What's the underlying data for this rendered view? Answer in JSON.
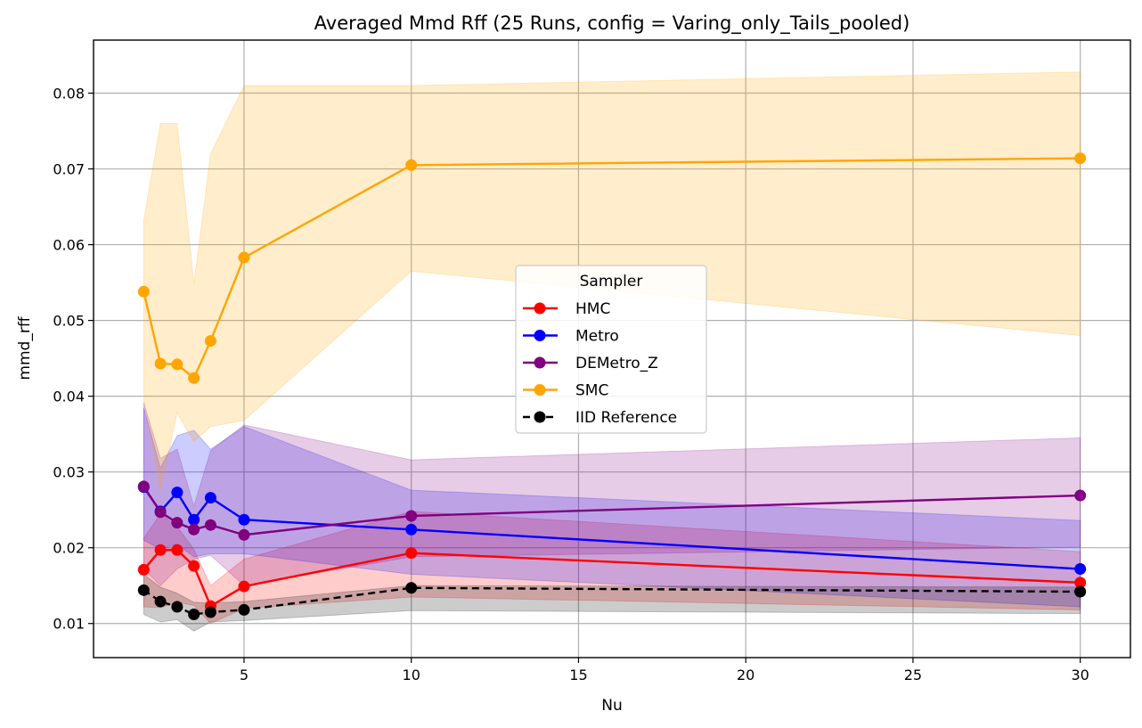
{
  "chart_data": {
    "type": "line",
    "title": "Averaged Mmd Rff (25 Runs, config = Varing_only_Tails_pooled)",
    "xlabel": "Nu",
    "ylabel": "mmd_rff",
    "xlim": [
      0.5,
      31.5
    ],
    "ylim": [
      0.0055,
      0.087
    ],
    "xticks": [
      5,
      10,
      15,
      20,
      25,
      30
    ],
    "yticks": [
      0.01,
      0.02,
      0.03,
      0.04,
      0.05,
      0.06,
      0.07,
      0.08
    ],
    "xtick_labels": [
      "5",
      "10",
      "15",
      "20",
      "25",
      "30"
    ],
    "ytick_labels": [
      "0.01",
      "0.02",
      "0.03",
      "0.04",
      "0.05",
      "0.06",
      "0.07",
      "0.08"
    ],
    "grid": true,
    "legend": {
      "title": "Sampler",
      "placement": "center"
    },
    "x": [
      2,
      2.5,
      3,
      3.5,
      4,
      5,
      10,
      30
    ],
    "series": [
      {
        "name": "HMC",
        "color": "#ff0000",
        "linestyle": "solid",
        "values": [
          0.0171,
          0.0197,
          0.0197,
          0.0176,
          0.0123,
          0.0149,
          0.0193,
          0.0154
        ],
        "lower": [
          0.0122,
          0.0121,
          0.0128,
          0.0124,
          0.01,
          0.012,
          0.0135,
          0.0118
        ],
        "upper": [
          0.0212,
          0.0245,
          0.0228,
          0.0198,
          0.015,
          0.0185,
          0.0248,
          0.0195
        ]
      },
      {
        "name": "Metro",
        "color": "#0000ff",
        "linestyle": "solid",
        "values": [
          0.028,
          0.0248,
          0.0273,
          0.0237,
          0.0266,
          0.0237,
          0.0224,
          0.0172
        ],
        "lower": [
          0.021,
          0.0198,
          0.0205,
          0.0188,
          0.0192,
          0.0192,
          0.0165,
          0.0122
        ],
        "upper": [
          0.0385,
          0.0305,
          0.0348,
          0.0355,
          0.033,
          0.036,
          0.0276,
          0.0236
        ]
      },
      {
        "name": "DEMetro_Z",
        "color": "#800080",
        "linestyle": "solid",
        "values": [
          0.0281,
          0.0247,
          0.0233,
          0.0224,
          0.023,
          0.0217,
          0.0242,
          0.0269
        ],
        "lower": [
          0.0172,
          0.015,
          0.0172,
          0.0185,
          0.019,
          0.015,
          0.0188,
          0.0201
        ],
        "upper": [
          0.0392,
          0.0318,
          0.033,
          0.0255,
          0.0328,
          0.0362,
          0.0316,
          0.0345
        ]
      },
      {
        "name": "SMC",
        "color": "#ffa500",
        "linestyle": "solid",
        "values": [
          0.0538,
          0.0443,
          0.0442,
          0.0424,
          0.0473,
          0.0583,
          0.0705,
          0.0714
        ],
        "lower": [
          0.0397,
          0.0275,
          0.0378,
          0.034,
          0.036,
          0.0368,
          0.0565,
          0.048
        ],
        "upper": [
          0.0632,
          0.076,
          0.076,
          0.0548,
          0.072,
          0.081,
          0.081,
          0.0828
        ]
      },
      {
        "name": "IID Reference",
        "color": "#000000",
        "linestyle": "dashed",
        "values": [
          0.0144,
          0.0129,
          0.0122,
          0.0112,
          0.0115,
          0.0118,
          0.0147,
          0.0142
        ],
        "lower": [
          0.0112,
          0.0102,
          0.0105,
          0.009,
          0.0102,
          0.0104,
          0.0117,
          0.0113
        ],
        "upper": [
          0.0165,
          0.0148,
          0.014,
          0.0128,
          0.0127,
          0.0129,
          0.015,
          0.0148
        ]
      }
    ]
  }
}
